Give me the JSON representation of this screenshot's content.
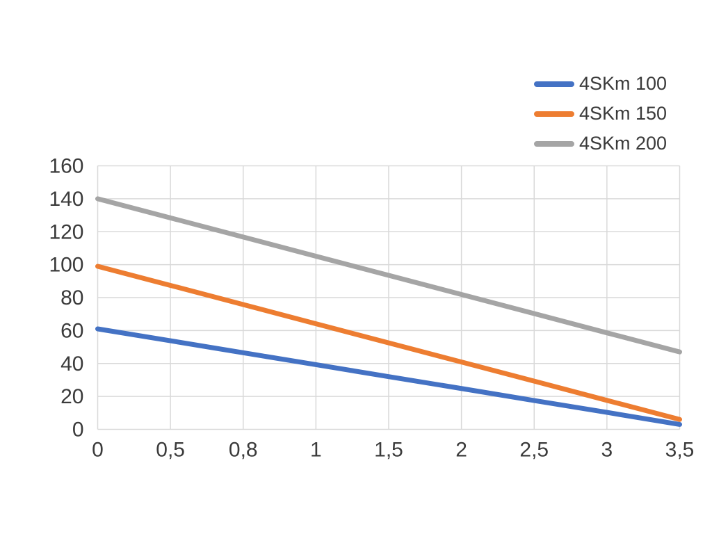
{
  "chart_data": {
    "type": "line",
    "categories": [
      "0",
      "0,5",
      "0,8",
      "1",
      "1,5",
      "2",
      "2,5",
      "3",
      "3,5"
    ],
    "series": [
      {
        "name": "4SKm 100",
        "color": "#4472C4",
        "values": [
          61,
          53.8,
          46.5,
          39.3,
          32,
          24.8,
          17.5,
          10.3,
          3
        ]
      },
      {
        "name": "4SKm 150",
        "color": "#ED7D31",
        "values": [
          99,
          87.4,
          75.8,
          64.1,
          52.5,
          40.9,
          29.3,
          17.6,
          6
        ]
      },
      {
        "name": "4SKm 200",
        "color": "#A5A5A5",
        "values": [
          140,
          128.4,
          116.8,
          105.1,
          93.5,
          81.9,
          70.3,
          58.6,
          47
        ]
      }
    ],
    "ylim": [
      0,
      160
    ],
    "ytick_step": 20,
    "y_tick_labels": [
      "0",
      "20",
      "40",
      "60",
      "80",
      "100",
      "120",
      "140",
      "160"
    ],
    "grid": "both",
    "legend_position": "top-right"
  },
  "style": {
    "background": "#FFFFFF",
    "grid_color": "#D9D9D9",
    "text_color": "#3B3B3B"
  }
}
